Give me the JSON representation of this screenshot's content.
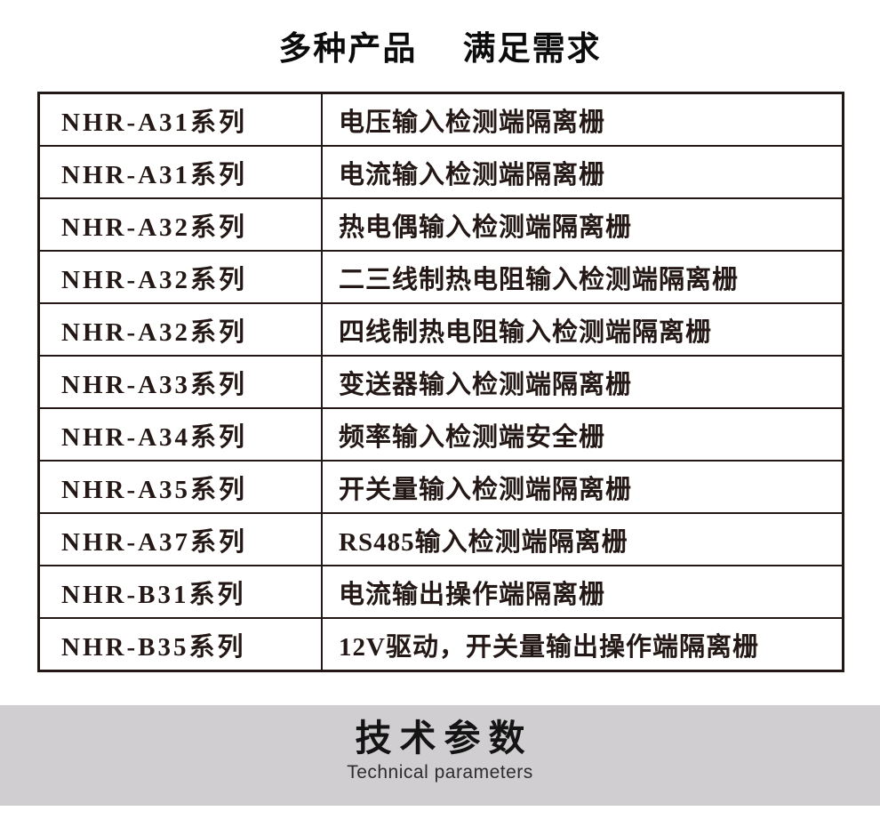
{
  "page": {
    "title": "多种产品　 满足需求"
  },
  "table": {
    "rows": [
      {
        "series": "NHR-A31系列",
        "desc": "电压输入检测端隔离栅"
      },
      {
        "series": "NHR-A31系列",
        "desc": "电流输入检测端隔离栅"
      },
      {
        "series": "NHR-A32系列",
        "desc": "热电偶输入检测端隔离栅"
      },
      {
        "series": "NHR-A32系列",
        "desc": "二三线制热电阻输入检测端隔离栅"
      },
      {
        "series": "NHR-A32系列",
        "desc": "四线制热电阻输入检测端隔离栅"
      },
      {
        "series": "NHR-A33系列",
        "desc": "变送器输入检测端隔离栅"
      },
      {
        "series": "NHR-A34系列",
        "desc": "频率输入检测端安全栅"
      },
      {
        "series": "NHR-A35系列",
        "desc": "开关量输入检测端隔离栅"
      },
      {
        "series": "NHR-A37系列",
        "desc": "RS485输入检测端隔离栅"
      },
      {
        "series": "NHR-B31系列",
        "desc": "电流输出操作端隔离栅"
      },
      {
        "series": "NHR-B35系列",
        "desc": "12V驱动，开关量输出操作端隔离栅"
      }
    ]
  },
  "banner": {
    "title": "技术参数",
    "subtitle": "Technical parameters",
    "background": "#d0ced0"
  },
  "colors": {
    "table_border": "#231815",
    "table_text": "#231815",
    "title_text": "#0c0c0c"
  }
}
